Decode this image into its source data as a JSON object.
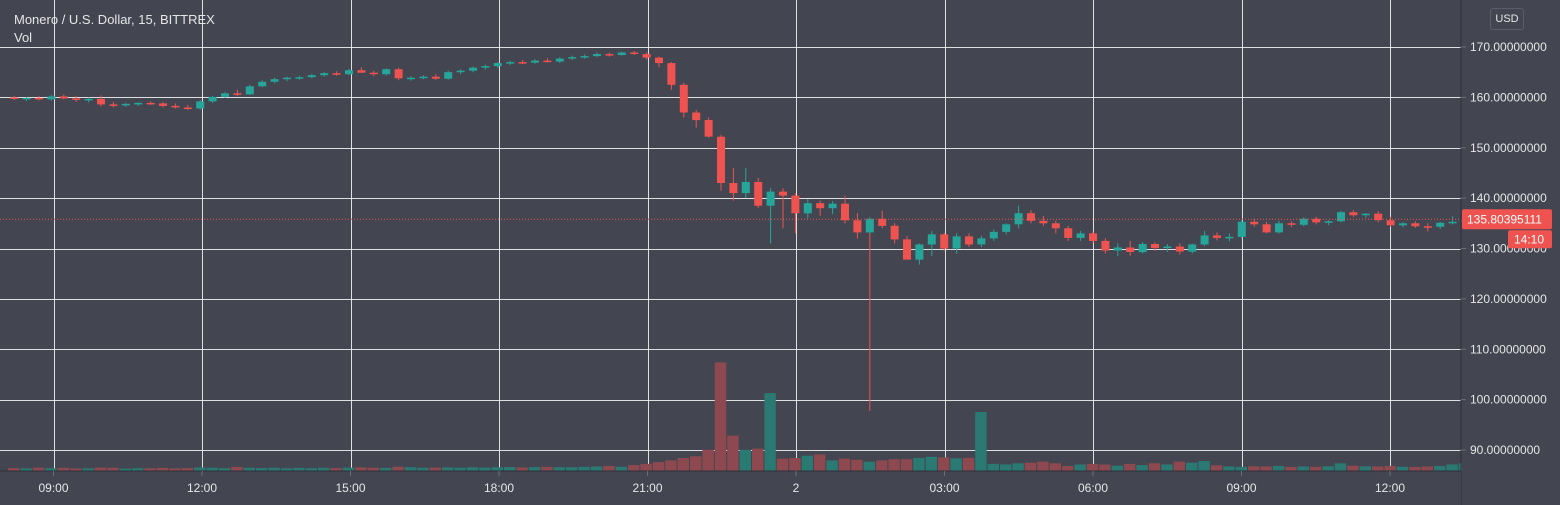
{
  "chart": {
    "title": "Monero / U.S. Dollar, 15, BITTREX",
    "volume_label": "Vol",
    "currency": "USD",
    "price_tag": "135.80395111",
    "countdown_tag": "14:10"
  },
  "colors": {
    "background": "#434651",
    "grid": "#f0f0f0",
    "up": "#26a69a",
    "down": "#ef5350",
    "volume_up": "#2a7a73",
    "volume_down": "#8e4950",
    "axis_text": "#e6e6e6",
    "price_line": "#ef5350"
  },
  "chart_data": {
    "type": "candlestick",
    "y_axis_ticks": [
      "170.00000000",
      "160.00000000",
      "150.00000000",
      "140.00000000",
      "130.00000000",
      "120.00000000",
      "110.00000000",
      "100.00000000",
      "90.00000000"
    ],
    "y_axis_values": [
      170,
      160,
      150,
      140,
      130,
      120,
      110,
      100,
      90
    ],
    "x_axis_ticks": [
      "09:00",
      "12:00",
      "15:00",
      "18:00",
      "21:00",
      "2",
      "03:00",
      "06:00",
      "09:00",
      "12:00"
    ],
    "ylim": [
      84,
      174
    ],
    "current_price": 135.80395111,
    "grid": true,
    "candles_per_hour": 4,
    "ohlc": [
      [
        160,
        160.3,
        159.5,
        159.7
      ],
      [
        159.7,
        160.1,
        159.3,
        159.9
      ],
      [
        159.9,
        160.3,
        159.4,
        159.6
      ],
      [
        159.6,
        160.5,
        159.4,
        160.2
      ],
      [
        160.2,
        160.6,
        159.6,
        159.8
      ],
      [
        159.8,
        160.3,
        159.1,
        159.5
      ],
      [
        159.5,
        160.0,
        159.0,
        159.7
      ],
      [
        159.7,
        160.4,
        158.2,
        158.6
      ],
      [
        158.6,
        159.1,
        158.0,
        158.4
      ],
      [
        158.4,
        158.9,
        158.1,
        158.7
      ],
      [
        158.7,
        159.0,
        158.3,
        158.9
      ],
      [
        158.9,
        159.2,
        158.5,
        158.8
      ],
      [
        158.8,
        159.1,
        158.0,
        158.3
      ],
      [
        158.3,
        158.8,
        157.8,
        158.0
      ],
      [
        158.0,
        158.5,
        157.5,
        157.8
      ],
      [
        157.8,
        159.5,
        157.6,
        159.2
      ],
      [
        159.2,
        160.3,
        158.9,
        160.1
      ],
      [
        160.1,
        161.0,
        159.9,
        160.8
      ],
      [
        160.8,
        161.5,
        160.3,
        160.6
      ],
      [
        160.6,
        162.5,
        160.5,
        162.2
      ],
      [
        162.2,
        163.4,
        162.0,
        163.1
      ],
      [
        163.1,
        163.9,
        162.8,
        163.6
      ],
      [
        163.6,
        164.1,
        163.2,
        163.9
      ],
      [
        163.9,
        164.3,
        163.5,
        164.0
      ],
      [
        164.0,
        164.7,
        163.8,
        164.4
      ],
      [
        164.4,
        165.0,
        164.1,
        164.8
      ],
      [
        164.8,
        165.2,
        164.3,
        164.6
      ],
      [
        164.6,
        165.7,
        164.4,
        165.4
      ],
      [
        165.4,
        166.0,
        164.9,
        164.9
      ],
      [
        164.9,
        165.3,
        164.2,
        164.6
      ],
      [
        164.6,
        165.8,
        164.3,
        165.6
      ],
      [
        165.6,
        165.9,
        163.4,
        163.8
      ],
      [
        163.8,
        164.2,
        163.3,
        163.9
      ],
      [
        163.9,
        164.4,
        163.6,
        164.1
      ],
      [
        164.1,
        164.6,
        163.5,
        163.7
      ],
      [
        163.7,
        165.3,
        163.5,
        165.0
      ],
      [
        165.0,
        165.6,
        164.6,
        165.3
      ],
      [
        165.3,
        166.1,
        165.0,
        165.9
      ],
      [
        165.9,
        166.5,
        165.5,
        166.2
      ],
      [
        166.2,
        167.0,
        165.9,
        166.8
      ],
      [
        166.8,
        167.3,
        166.4,
        167.0
      ],
      [
        167.0,
        167.4,
        166.6,
        166.9
      ],
      [
        166.9,
        167.6,
        166.7,
        167.3
      ],
      [
        167.3,
        167.8,
        166.9,
        167.1
      ],
      [
        167.1,
        168.0,
        166.8,
        167.7
      ],
      [
        167.7,
        168.3,
        167.4,
        168.0
      ],
      [
        168.0,
        168.5,
        167.7,
        168.2
      ],
      [
        168.2,
        168.9,
        168.0,
        168.6
      ],
      [
        168.6,
        168.9,
        168.1,
        168.4
      ],
      [
        168.4,
        169.1,
        168.3,
        168.9
      ],
      [
        168.9,
        169.2,
        168.4,
        168.6
      ],
      [
        168.6,
        168.9,
        167.5,
        167.9
      ],
      [
        167.9,
        168.1,
        166.0,
        166.8
      ],
      [
        166.8,
        167.0,
        161.5,
        162.5
      ],
      [
        162.5,
        162.9,
        156.0,
        157.0
      ],
      [
        157.0,
        157.5,
        154.0,
        155.5
      ],
      [
        155.5,
        156.0,
        152.0,
        152.2
      ],
      [
        152.2,
        152.6,
        141.5,
        143.0
      ],
      [
        143.0,
        146.0,
        139.5,
        141.0
      ],
      [
        141.0,
        146.0,
        140.0,
        143.2
      ],
      [
        143.2,
        144.0,
        138.0,
        138.5
      ],
      [
        138.5,
        142.0,
        131.0,
        141.3
      ],
      [
        141.3,
        142.0,
        134.0,
        140.5
      ],
      [
        140.5,
        141.0,
        133.0,
        137.0
      ],
      [
        137.0,
        139.8,
        136.0,
        139.0
      ],
      [
        139.0,
        139.5,
        136.5,
        138.0
      ],
      [
        138.0,
        139.4,
        136.8,
        138.9
      ],
      [
        138.9,
        140.5,
        135.0,
        135.6
      ],
      [
        135.6,
        137.0,
        132.0,
        133.2
      ],
      [
        133.2,
        136.2,
        132.8,
        135.9
      ],
      [
        135.9,
        137.5,
        134.0,
        134.5
      ],
      [
        134.5,
        135.0,
        131.0,
        131.8
      ],
      [
        131.8,
        132.5,
        127.8,
        127.8
      ],
      [
        127.8,
        131.0,
        126.8,
        130.8
      ],
      [
        130.8,
        133.5,
        128.5,
        132.8
      ],
      [
        132.8,
        133.1,
        129.5,
        130.0
      ],
      [
        130.0,
        133.0,
        129.0,
        132.4
      ],
      [
        132.4,
        133.0,
        130.3,
        130.8
      ],
      [
        130.8,
        132.5,
        130.3,
        132.0
      ],
      [
        132.0,
        133.8,
        131.5,
        133.3
      ],
      [
        133.3,
        135.0,
        132.8,
        134.8
      ],
      [
        134.8,
        138.5,
        134.0,
        137.0
      ],
      [
        137.0,
        137.6,
        135.0,
        135.5
      ],
      [
        135.5,
        136.5,
        134.5,
        135.0
      ],
      [
        135.0,
        135.5,
        133.0,
        134.0
      ],
      [
        134.0,
        134.5,
        131.5,
        132.1
      ],
      [
        132.1,
        133.5,
        131.5,
        133.0
      ],
      [
        133.0,
        133.4,
        131.0,
        131.5
      ],
      [
        131.5,
        132.0,
        129.0,
        129.6
      ],
      [
        129.6,
        131.0,
        128.5,
        130.2
      ],
      [
        130.2,
        131.5,
        128.6,
        129.3
      ],
      [
        129.3,
        131.3,
        129.0,
        130.9
      ],
      [
        130.9,
        131.2,
        129.5,
        130.1
      ],
      [
        130.1,
        130.9,
        129.3,
        130.4
      ],
      [
        130.4,
        131.0,
        128.8,
        129.4
      ],
      [
        129.4,
        131.0,
        129.0,
        130.8
      ],
      [
        130.8,
        133.5,
        130.5,
        132.6
      ],
      [
        132.6,
        133.2,
        131.6,
        132.1
      ],
      [
        132.1,
        133.0,
        131.4,
        132.3
      ],
      [
        132.3,
        135.8,
        131.9,
        135.3
      ],
      [
        135.3,
        135.9,
        134.3,
        134.8
      ],
      [
        134.8,
        135.3,
        133.0,
        133.2
      ],
      [
        133.2,
        135.5,
        133.0,
        135.0
      ],
      [
        135.0,
        135.4,
        134.3,
        134.7
      ],
      [
        134.7,
        136.2,
        134.4,
        135.9
      ],
      [
        135.9,
        136.3,
        134.8,
        135.2
      ],
      [
        135.2,
        135.6,
        134.6,
        135.4
      ],
      [
        135.4,
        137.5,
        135.2,
        137.2
      ],
      [
        137.2,
        137.6,
        136.3,
        136.6
      ],
      [
        136.6,
        137.0,
        136.1,
        136.9
      ],
      [
        136.9,
        137.4,
        135.2,
        135.6
      ],
      [
        135.6,
        136.3,
        134.3,
        134.6
      ],
      [
        134.6,
        135.2,
        134.2,
        135.0
      ],
      [
        135.0,
        135.4,
        134.1,
        134.4
      ],
      [
        134.4,
        135.0,
        133.4,
        134.3
      ],
      [
        134.3,
        135.3,
        133.9,
        135.1
      ],
      [
        135.1,
        136.4,
        134.8,
        135.3
      ],
      [
        135.3,
        136.6,
        135.0,
        135.6
      ],
      [
        135.6,
        136.6,
        135.2,
        136.3
      ],
      [
        136.3,
        136.5,
        135.6,
        135.8
      ]
    ],
    "volume": [
      2.5,
      2.2,
      2.8,
      2.4,
      2.6,
      2.1,
      2.3,
      2.9,
      2.7,
      2.0,
      2.4,
      2.3,
      2.6,
      2.2,
      2.5,
      3.0,
      2.8,
      2.4,
      3.5,
      2.7,
      2.5,
      2.8,
      2.3,
      2.6,
      2.4,
      2.7,
      2.5,
      2.9,
      3.1,
      2.8,
      2.6,
      3.6,
      3.2,
      2.7,
      2.9,
      3.0,
      2.8,
      3.1,
      2.9,
      3.2,
      3.4,
      3.0,
      3.3,
      3.6,
      3.2,
      3.1,
      3.5,
      3.8,
      4.2,
      3.6,
      5.0,
      6.0,
      7.5,
      9.0,
      11.0,
      12.5,
      18.0,
      92.0,
      30.0,
      18.0,
      19.0,
      66.0,
      10.5,
      11.0,
      13.0,
      14.0,
      9.0,
      10.5,
      9.5,
      8.0,
      9.0,
      10.0,
      10.0,
      11.0,
      12.0,
      11.5,
      10.8,
      11.2,
      50.0,
      6.0,
      5.5,
      6.5,
      7.0,
      8.0,
      6.5,
      4.2,
      5.5,
      6.0,
      5.5,
      4.5,
      6.0,
      5.0,
      6.5,
      5.5,
      8.0,
      7.0,
      8.5,
      4.8,
      3.8,
      3.5,
      4.0,
      3.8,
      4.2,
      3.5,
      3.8,
      3.6,
      4.0,
      6.5,
      4.5,
      4.0,
      3.8,
      4.2,
      3.6,
      3.4,
      3.8,
      4.2,
      5.5,
      6.5,
      11.0,
      2.5
    ],
    "volume_max": 100
  }
}
